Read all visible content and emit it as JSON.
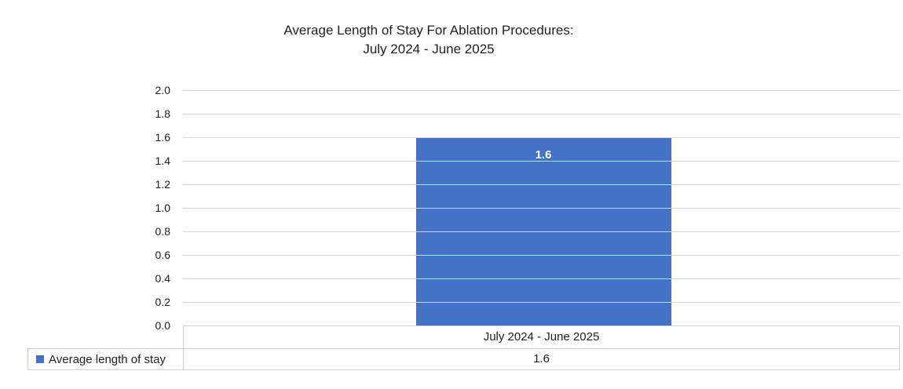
{
  "chart_data": {
    "type": "bar",
    "title": "Average Length of Stay For Ablation Procedures:",
    "subtitle": "July 2024 - June 2025",
    "categories": [
      "July 2024 - June 2025"
    ],
    "series": [
      {
        "name": "Average length of stay",
        "values": [
          1.6
        ]
      }
    ],
    "data_labels": [
      "1.6"
    ],
    "xlabel": "",
    "ylabel": "",
    "ylim": [
      0.0,
      2.0
    ],
    "ytick_step": 0.2,
    "yticks": [
      "2.0",
      "1.8",
      "1.6",
      "1.4",
      "1.2",
      "1.0",
      "0.8",
      "0.6",
      "0.4",
      "0.2",
      "0.0"
    ],
    "grid": true,
    "legend_position": "data-table-left"
  },
  "table": {
    "category_header": "July 2024 - June 2025",
    "row_label": "Average length of stay",
    "row_value": "1.6"
  },
  "colors": {
    "bar": "#4472C4",
    "gridline": "#D9D9D9",
    "table_border": "#CFCFCF",
    "data_label_text": "#FFFFFF"
  }
}
